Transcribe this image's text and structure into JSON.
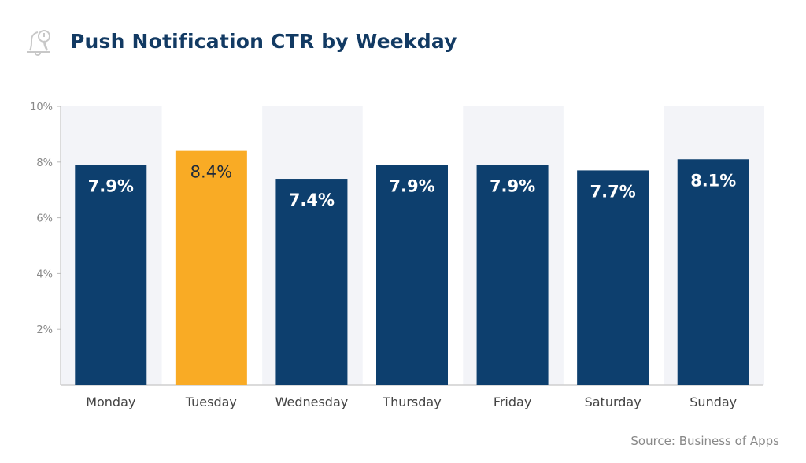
{
  "chart_data": {
    "type": "bar",
    "title": "Push Notification CTR by Weekday",
    "categories": [
      "Monday",
      "Tuesday",
      "Wednesday",
      "Thursday",
      "Friday",
      "Saturday",
      "Sunday"
    ],
    "values": [
      7.9,
      8.4,
      7.4,
      7.9,
      7.9,
      7.7,
      8.1
    ],
    "data_labels": [
      "7.9%",
      "8.4%",
      "7.4%",
      "7.9%",
      "7.9%",
      "7.7%",
      "8.1%"
    ],
    "highlight_category": "Tuesday",
    "ylim": [
      0,
      10
    ],
    "yticks": [
      2,
      4,
      6,
      8,
      10
    ],
    "ytick_labels": [
      "2%",
      "4%",
      "6%",
      "8%",
      "10%"
    ],
    "xlabel": "",
    "ylabel": "",
    "grid": false,
    "colors": {
      "bar": "#0d3f6e",
      "highlight": "#f9ab25",
      "band": "#f3f4f8",
      "title": "#123a63"
    }
  },
  "icon": "bell-alert-icon",
  "source": "Source: Business of Apps"
}
